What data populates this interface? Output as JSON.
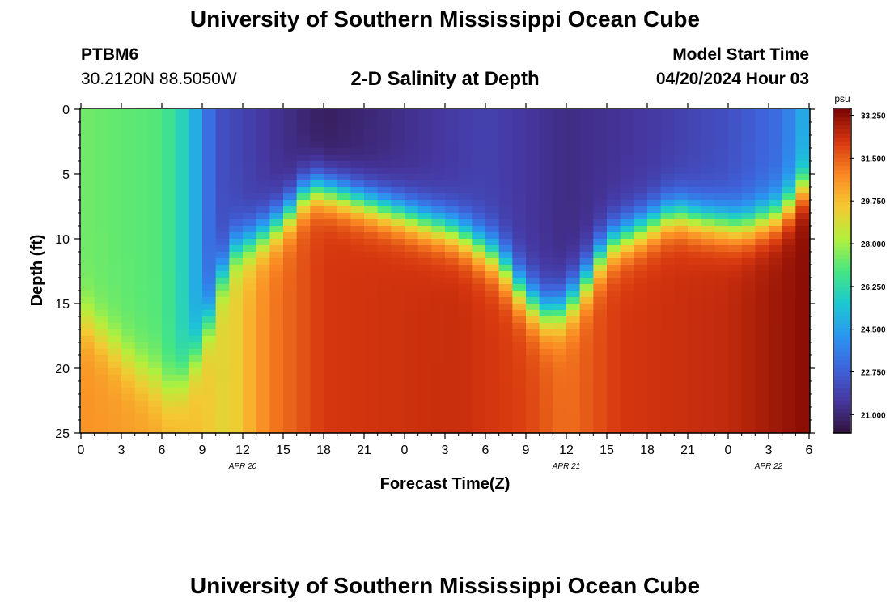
{
  "header": {
    "title": "University of Southern Mississippi Ocean Cube",
    "station_id": "PTBM6",
    "coordinates": "30.2120N  88.5050W",
    "subtitle": "2-D Salinity at Depth",
    "model_start_label": "Model Start Time",
    "model_start_value": "04/20/2024 Hour 03"
  },
  "footer": {
    "title": "University of Southern Mississippi Ocean Cube"
  },
  "chart_data": {
    "type": "heatmap",
    "title": "2-D Salinity at Depth",
    "xlabel": "Forecast Time(Z)",
    "ylabel": "Depth (ft)",
    "x_ticks": [
      "0",
      "3",
      "6",
      "9",
      "12",
      "15",
      "18",
      "21",
      "0",
      "3",
      "6",
      "9",
      "12",
      "15",
      "18",
      "21",
      "0",
      "3",
      "6"
    ],
    "x_range_hours": [
      0,
      54
    ],
    "y_ticks": [
      "0",
      "5",
      "10",
      "15",
      "20",
      "25"
    ],
    "y_range_ft": [
      0,
      25
    ],
    "date_labels": [
      {
        "text": "APR 20",
        "hour": 12
      },
      {
        "text": "APR 21",
        "hour": 36
      },
      {
        "text": "APR 22",
        "hour": 51
      }
    ],
    "colorbar": {
      "unit": "psu",
      "min": 20.25,
      "max": 33.5,
      "tick_labels": [
        "33.250",
        "31.500",
        "29.750",
        "28.000",
        "26.250",
        "24.500",
        "22.750",
        "21.000"
      ],
      "tick_values": [
        33.25,
        31.5,
        29.75,
        28.0,
        26.25,
        24.5,
        22.75,
        21.0
      ]
    },
    "grid": {
      "hour_step": 1,
      "depth_step_ft": 0.5
    },
    "halocline_keypoints": [
      {
        "hour": 0,
        "depth_ft": 16.0
      },
      {
        "hour": 4,
        "depth_ft": 20.0
      },
      {
        "hour": 7,
        "depth_ft": 22.0
      },
      {
        "hour": 9,
        "depth_ft": 18.0
      },
      {
        "hour": 11,
        "depth_ft": 11.0
      },
      {
        "hour": 13,
        "depth_ft": 10.0
      },
      {
        "hour": 15,
        "depth_ft": 8.5
      },
      {
        "hour": 17,
        "depth_ft": 6.0
      },
      {
        "hour": 19,
        "depth_ft": 6.5
      },
      {
        "hour": 22,
        "depth_ft": 7.5
      },
      {
        "hour": 25,
        "depth_ft": 8.5
      },
      {
        "hour": 28,
        "depth_ft": 9.5
      },
      {
        "hour": 31,
        "depth_ft": 11.5
      },
      {
        "hour": 33,
        "depth_ft": 14.5
      },
      {
        "hour": 35,
        "depth_ft": 16.0
      },
      {
        "hour": 37,
        "depth_ft": 14.0
      },
      {
        "hour": 39,
        "depth_ft": 10.5
      },
      {
        "hour": 42,
        "depth_ft": 9.0
      },
      {
        "hour": 44,
        "depth_ft": 8.0
      },
      {
        "hour": 46,
        "depth_ft": 8.5
      },
      {
        "hour": 49,
        "depth_ft": 9.0
      },
      {
        "hour": 52,
        "depth_ft": 8.0
      },
      {
        "hour": 54,
        "depth_ft": 5.5
      }
    ],
    "surface_salinity_keypoints": [
      {
        "hour": 0,
        "psu": 27.4
      },
      {
        "hour": 6,
        "psu": 27.0
      },
      {
        "hour": 8,
        "psu": 25.6
      },
      {
        "hour": 10,
        "psu": 22.4
      },
      {
        "hour": 13,
        "psu": 21.7
      },
      {
        "hour": 18,
        "psu": 20.7
      },
      {
        "hour": 22,
        "psu": 21.1
      },
      {
        "hour": 30,
        "psu": 21.9
      },
      {
        "hour": 36,
        "psu": 21.2
      },
      {
        "hour": 42,
        "psu": 21.6
      },
      {
        "hour": 48,
        "psu": 22.3
      },
      {
        "hour": 52,
        "psu": 23.2
      },
      {
        "hour": 54,
        "psu": 25.2
      }
    ],
    "bottom_salinity_keypoints": [
      {
        "hour": 0,
        "psu": 30.6
      },
      {
        "hour": 5,
        "psu": 30.3
      },
      {
        "hour": 9,
        "psu": 29.6
      },
      {
        "hour": 11,
        "psu": 29.0
      },
      {
        "hour": 14,
        "psu": 31.0
      },
      {
        "hour": 18,
        "psu": 32.2
      },
      {
        "hour": 28,
        "psu": 32.4
      },
      {
        "hour": 33,
        "psu": 32.0
      },
      {
        "hour": 36,
        "psu": 31.2
      },
      {
        "hour": 40,
        "psu": 32.2
      },
      {
        "hour": 48,
        "psu": 32.5
      },
      {
        "hour": 54,
        "psu": 33.3
      }
    ]
  }
}
